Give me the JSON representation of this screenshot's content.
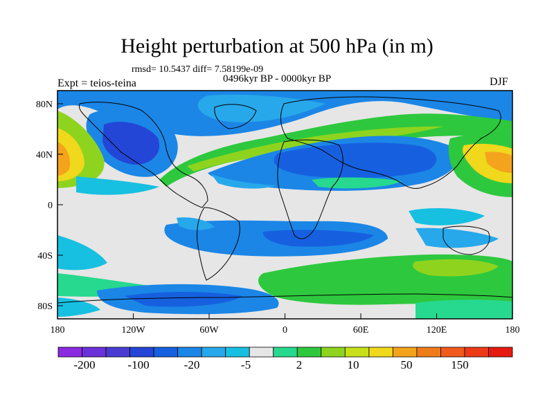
{
  "title": "Height perturbation at 500 hPa (in m)",
  "stats_line": "rmsd= 10.5437 diff= 7.58199e-09",
  "period": "0496kyr BP - 0000kyr BP",
  "experiment": "Expt = teios-teina",
  "season": "DJF",
  "axes": {
    "lat_labels": [
      "80N",
      "40N",
      "0",
      "40S",
      "80S"
    ],
    "lon_labels": [
      "180",
      "120W",
      "60W",
      "0",
      "60E",
      "120E",
      "180"
    ]
  },
  "colorbar": {
    "colors": [
      "#8a2be2",
      "#6a32d8",
      "#4a3cd2",
      "#2346d6",
      "#1660e0",
      "#1b86e6",
      "#27a8ea",
      "#17c0e0",
      "#e6e6e6",
      "#27d98f",
      "#2ec83e",
      "#8ed41e",
      "#c7e01a",
      "#f0d81c",
      "#f4a31d",
      "#ef7c1b",
      "#f05a1c",
      "#ec3a19",
      "#e61a10"
    ],
    "tick_labels": [
      "-200",
      "-100",
      "-20",
      "-5",
      "2",
      "10",
      "50",
      "150"
    ]
  }
}
